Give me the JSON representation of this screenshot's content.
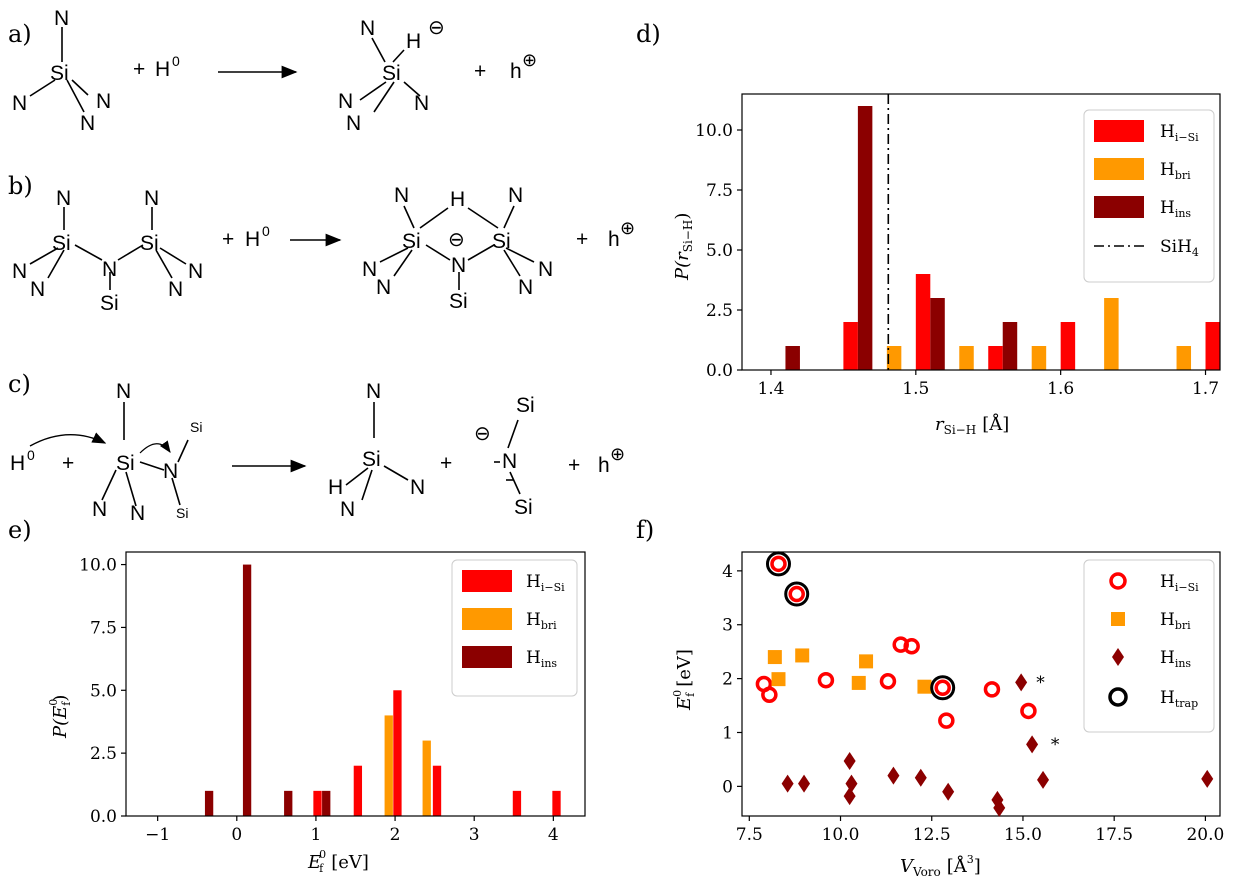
{
  "schemes": {
    "a": {
      "label": "a)",
      "reactant_atoms": [
        "N",
        "Si",
        "N",
        "N",
        "N"
      ],
      "plus": "+",
      "reagent": "H",
      "reagent_sup": "0",
      "product_atoms": [
        "N",
        "H",
        "Si",
        "N",
        "N",
        "N"
      ],
      "product_charge": "⊖",
      "hole": "h",
      "hole_charge": "⊕"
    },
    "b": {
      "label": "b)",
      "reactant_atoms": [
        "N",
        "N",
        "Si",
        "Si",
        "N",
        "N",
        "N",
        "N",
        "N",
        "Si"
      ],
      "plus": "+",
      "reagent": "H",
      "reagent_sup": "0",
      "product_atoms": [
        "N",
        "H",
        "N",
        "Si",
        "Si",
        "N",
        "N",
        "N",
        "N",
        "N",
        "Si"
      ],
      "product_charge": "⊖",
      "hole": "h",
      "hole_charge": "⊕"
    },
    "c": {
      "label": "c)",
      "reagent": "H",
      "reagent_sup": "0",
      "plus": "+",
      "reactant_atoms": [
        "N",
        "Si",
        "Si",
        "N",
        "N",
        "N",
        "Si"
      ],
      "product1_atoms": [
        "N",
        "Si",
        "H",
        "N",
        "N"
      ],
      "product2_atoms": [
        "Si",
        "N",
        "Si"
      ],
      "product2_charge": "⊖",
      "hole": "h",
      "hole_charge": "⊕"
    }
  },
  "chart_data": [
    {
      "id": "d",
      "panel_label": "d)",
      "type": "bar",
      "xlabel": "r",
      "xlabel_sub": "Si−H",
      "xlabel_unit": "[Å]",
      "ylabel": "P(r",
      "ylabel_sub": "Si−H",
      "ylabel_tail": ")",
      "xlim": [
        1.38,
        1.71
      ],
      "ylim": [
        0,
        11.5
      ],
      "xticks": [
        "1.4",
        "1.5",
        "1.6",
        "1.7"
      ],
      "yticks": [
        "0.0",
        "2.5",
        "5.0",
        "7.5",
        "10.0"
      ],
      "bin_width": 0.01,
      "series": [
        {
          "name": "H",
          "name_sub": "i−Si",
          "color": "#ff0000",
          "x": [
            1.455,
            1.505,
            1.555,
            1.605,
            1.705
          ],
          "values": [
            2,
            4,
            1,
            2,
            2
          ]
        },
        {
          "name": "H",
          "name_sub": "bri",
          "color": "#ff9900",
          "x": [
            1.485,
            1.535,
            1.585,
            1.635,
            1.685
          ],
          "values": [
            1,
            1,
            1,
            3,
            1
          ]
        },
        {
          "name": "H",
          "name_sub": "ins",
          "color": "#8b0000",
          "x": [
            1.415,
            1.465,
            1.515,
            1.565
          ],
          "values": [
            1,
            11,
            3,
            2
          ]
        }
      ],
      "reference_line": {
        "name": "SiH",
        "name_sub": "4",
        "x": 1.481
      }
    },
    {
      "id": "e",
      "panel_label": "e)",
      "type": "bar",
      "xlabel": "E",
      "xlabel_sup": "0",
      "xlabel_sub": "f",
      "xlabel_unit": "[eV]",
      "ylabel": "P(E",
      "ylabel_sup": "0",
      "ylabel_sub": "f",
      "ylabel_tail": ")",
      "xlim": [
        -1.4,
        4.4
      ],
      "ylim": [
        0,
        10.5
      ],
      "xticks": [
        "−1",
        "0",
        "1",
        "2",
        "3",
        "4"
      ],
      "yticks": [
        "0.0",
        "2.5",
        "5.0",
        "7.5",
        "10.0"
      ],
      "bin_width": 0.105,
      "series": [
        {
          "name": "H",
          "name_sub": "i−Si",
          "color": "#ff0000",
          "x": [
            1.02,
            1.53,
            2.03,
            2.53,
            3.54,
            4.04
          ],
          "values": [
            1,
            2,
            5,
            2,
            1,
            1
          ]
        },
        {
          "name": "H",
          "name_sub": "bri",
          "color": "#ff9900",
          "x": [
            1.92,
            2.4
          ],
          "values": [
            4,
            3
          ]
        },
        {
          "name": "H",
          "name_sub": "ins",
          "color": "#8b0000",
          "x": [
            -0.35,
            0.13,
            0.65,
            1.13
          ],
          "values": [
            1,
            10,
            1,
            1
          ]
        }
      ]
    },
    {
      "id": "f",
      "panel_label": "f)",
      "type": "scatter",
      "xlabel": "V",
      "xlabel_sub": "Voro",
      "xlabel_unit": "[Å",
      "xlabel_unit_sup": "3",
      "xlabel_unit_tail": "]",
      "ylabel": "E",
      "ylabel_sup": "0",
      "ylabel_sub": "f",
      "ylabel_unit": "[eV]",
      "xlim": [
        7.3,
        20.4
      ],
      "ylim": [
        -0.55,
        4.35
      ],
      "xticks": [
        "7.5",
        "10.0",
        "12.5",
        "15.0",
        "17.5",
        "20.0"
      ],
      "yticks": [
        "0",
        "1",
        "2",
        "3",
        "4"
      ],
      "series": [
        {
          "name": "H",
          "name_sub": "i−Si",
          "color": "#ff0000",
          "marker": "ring",
          "points": [
            [
              8.3,
              4.13
            ],
            [
              8.8,
              3.57
            ],
            [
              7.9,
              1.9
            ],
            [
              8.05,
              1.7
            ],
            [
              9.6,
              1.97
            ],
            [
              11.3,
              1.95
            ],
            [
              11.65,
              2.63
            ],
            [
              11.95,
              2.6
            ],
            [
              12.8,
              1.83
            ],
            [
              12.9,
              1.22
            ],
            [
              14.15,
              1.8
            ],
            [
              15.15,
              1.4
            ]
          ]
        },
        {
          "name": "H",
          "name_sub": "bri",
          "color": "#ff9900",
          "marker": "square",
          "points": [
            [
              8.2,
              2.4
            ],
            [
              8.3,
              1.99
            ],
            [
              8.95,
              2.43
            ],
            [
              10.5,
              1.92
            ],
            [
              10.7,
              2.32
            ],
            [
              12.3,
              1.85
            ]
          ]
        },
        {
          "name": "H",
          "name_sub": "ins",
          "color": "#8b0000",
          "marker": "diamond",
          "points": [
            [
              8.55,
              0.05
            ],
            [
              9.0,
              0.05
            ],
            [
              10.25,
              0.47
            ],
            [
              10.3,
              0.05
            ],
            [
              10.25,
              -0.18
            ],
            [
              11.45,
              0.2
            ],
            [
              12.2,
              0.16
            ],
            [
              12.95,
              -0.1
            ],
            [
              14.3,
              -0.25
            ],
            [
              14.35,
              -0.4
            ],
            [
              14.95,
              1.93
            ],
            [
              15.25,
              0.78
            ],
            [
              15.55,
              0.12
            ],
            [
              20.05,
              0.14
            ]
          ]
        },
        {
          "name": "H",
          "name_sub": "trap",
          "color": "#000000",
          "marker": "ring-large",
          "points": [
            [
              8.3,
              4.13
            ],
            [
              8.8,
              3.57
            ],
            [
              12.8,
              1.83
            ]
          ]
        }
      ],
      "annotations": [
        {
          "text": "*",
          "x": 15.2,
          "y": 1.97
        },
        {
          "text": "*",
          "x": 15.6,
          "y": 0.82
        }
      ]
    }
  ]
}
